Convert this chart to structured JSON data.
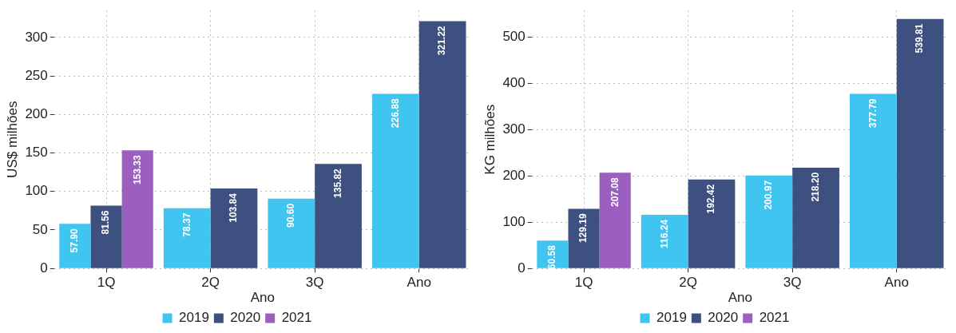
{
  "chart_data": [
    {
      "type": "bar",
      "categories": [
        "1Q",
        "2Q",
        "3Q",
        "Ano"
      ],
      "xlabel": "Ano",
      "ylabel": "US$ milhões",
      "ylim": [
        0,
        335
      ],
      "yticks": [
        0,
        50,
        100,
        150,
        200,
        250,
        300
      ],
      "grid": true,
      "legend": "bottom",
      "series": [
        {
          "name": "2019",
          "color": "#3fc5f0",
          "values": [
            57.9,
            78.37,
            90.6,
            226.88
          ],
          "value_labels": [
            "57.90",
            "78.37",
            "90.60",
            "226.88"
          ]
        },
        {
          "name": "2020",
          "color": "#3d5080",
          "values": [
            81.56,
            103.84,
            135.82,
            321.22
          ],
          "value_labels": [
            "81.56",
            "103.84",
            "135.82",
            "321.22"
          ]
        },
        {
          "name": "2021",
          "color": "#9b5fc0",
          "values": [
            153.33,
            null,
            null,
            null
          ],
          "value_labels": [
            "153.33",
            null,
            null,
            null
          ]
        }
      ]
    },
    {
      "type": "bar",
      "categories": [
        "1Q",
        "2Q",
        "3Q",
        "Ano"
      ],
      "xlabel": "Ano",
      "ylabel": "KG milhões",
      "ylim": [
        0,
        558
      ],
      "yticks": [
        0,
        100,
        200,
        300,
        400,
        500
      ],
      "grid": true,
      "legend": "bottom",
      "series": [
        {
          "name": "2019",
          "color": "#3fc5f0",
          "values": [
            60.58,
            116.24,
            200.97,
            377.79
          ],
          "value_labels": [
            "60.58",
            "116.24",
            "200.97",
            "377.79"
          ]
        },
        {
          "name": "2020",
          "color": "#3d5080",
          "values": [
            129.19,
            192.42,
            218.2,
            539.81
          ],
          "value_labels": [
            "129.19",
            "192.42",
            "218.20",
            "539.81"
          ]
        },
        {
          "name": "2021",
          "color": "#9b5fc0",
          "values": [
            207.08,
            null,
            null,
            null
          ],
          "value_labels": [
            "207.08",
            null,
            null,
            null
          ]
        }
      ]
    }
  ]
}
